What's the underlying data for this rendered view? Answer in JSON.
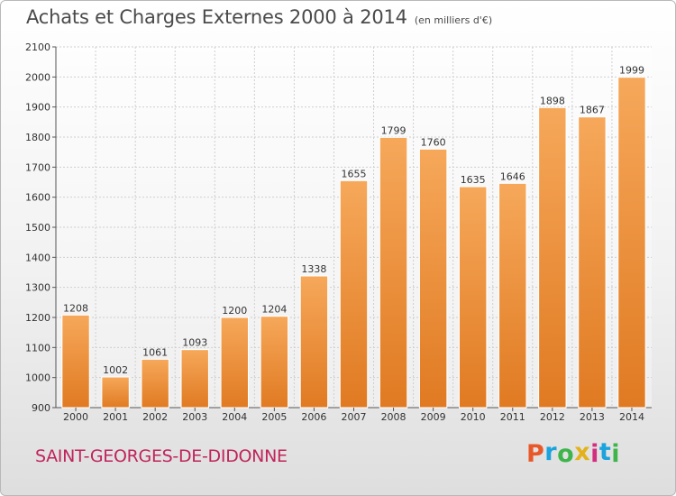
{
  "header": {
    "title": "Achats et Charges Externes 2000 à 2014",
    "unit": "(en milliers d'€)"
  },
  "footer": {
    "city": "SAINT-GEORGES-DE-DIDONNE",
    "brand": "Proxiti",
    "brand_colors": [
      "#e8592a",
      "#1aa3dc",
      "#3db54a",
      "#e3b21b",
      "#d32e7f",
      "#1aa3dc",
      "#3db54a"
    ]
  },
  "colors": {
    "bar_top": "#f6a85a",
    "bar_bottom": "#e07a22",
    "grid": "#cfcfcf",
    "text": "#333333"
  },
  "chart_data": {
    "type": "bar",
    "title": "Achats et Charges Externes 2000 à 2014",
    "subtitle": "(en milliers d'€)",
    "xlabel": "",
    "ylabel": "",
    "categories": [
      "2000",
      "2001",
      "2002",
      "2003",
      "2004",
      "2005",
      "2006",
      "2007",
      "2008",
      "2009",
      "2010",
      "2011",
      "2012",
      "2013",
      "2014"
    ],
    "values": [
      1208,
      1002,
      1061,
      1093,
      1200,
      1204,
      1338,
      1655,
      1799,
      1760,
      1635,
      1646,
      1898,
      1867,
      1999
    ],
    "value_labels": [
      "1208",
      "1002",
      "1061",
      "1093",
      "1200",
      "1204",
      "1338",
      "1655",
      "1799",
      "1760",
      "1635",
      "1646",
      "1898",
      "1867",
      "1999"
    ],
    "ylim": [
      900,
      2100
    ],
    "yticks": [
      "900",
      "1000",
      "1100",
      "1200",
      "1300",
      "1400",
      "1500",
      "1600",
      "1700",
      "1800",
      "1900",
      "2000",
      "2100"
    ],
    "grid": true,
    "legend": "none"
  }
}
